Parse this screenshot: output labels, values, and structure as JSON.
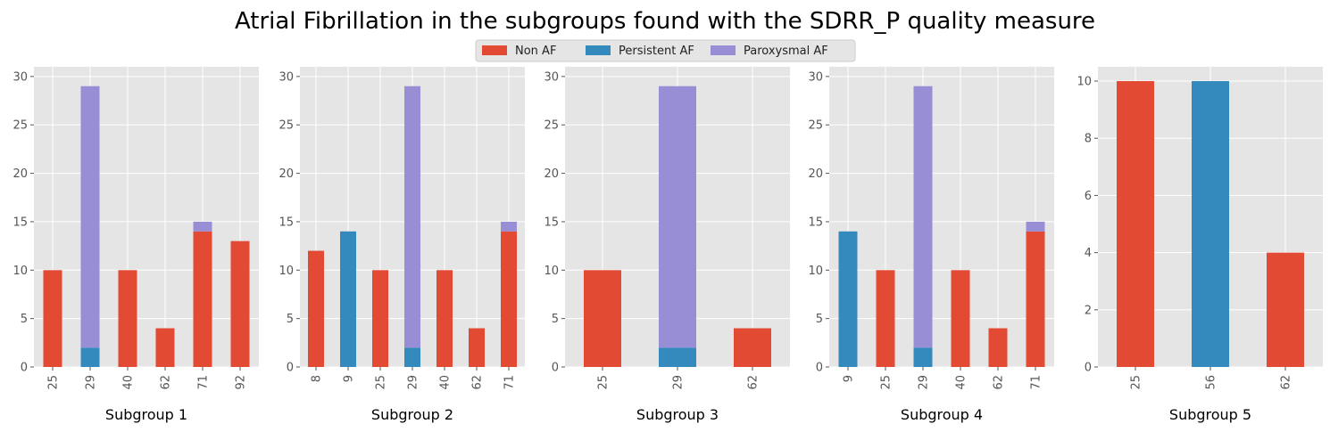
{
  "title": "Atrial Fibrillation in the subgroups found with the SDRR_P quality measure",
  "legend": [
    {
      "name": "Non AF",
      "color": "#e24a33"
    },
    {
      "name": "Persistent AF",
      "color": "#348abd"
    },
    {
      "name": "Paroxysmal AF",
      "color": "#988ed5"
    }
  ],
  "chart_data": [
    {
      "type": "bar",
      "stacked": true,
      "xlabel": "Subgroup 1",
      "categories": [
        "25",
        "29",
        "40",
        "62",
        "71",
        "92"
      ],
      "series": [
        {
          "name": "Non AF",
          "values": [
            10,
            0,
            10,
            4,
            14,
            13
          ]
        },
        {
          "name": "Persistent AF",
          "values": [
            0,
            2,
            0,
            0,
            0,
            0
          ]
        },
        {
          "name": "Paroxysmal AF",
          "values": [
            0,
            27,
            0,
            0,
            1,
            0
          ]
        }
      ],
      "ylim": [
        0,
        31
      ],
      "yticks": [
        0,
        5,
        10,
        15,
        20,
        25,
        30
      ]
    },
    {
      "type": "bar",
      "stacked": true,
      "xlabel": "Subgroup 2",
      "categories": [
        "8",
        "9",
        "25",
        "29",
        "40",
        "62",
        "71"
      ],
      "series": [
        {
          "name": "Non AF",
          "values": [
            12,
            0,
            10,
            0,
            10,
            4,
            14
          ]
        },
        {
          "name": "Persistent AF",
          "values": [
            0,
            14,
            0,
            2,
            0,
            0,
            0
          ]
        },
        {
          "name": "Paroxysmal AF",
          "values": [
            0,
            0,
            0,
            27,
            0,
            0,
            1
          ]
        }
      ],
      "ylim": [
        0,
        31
      ],
      "yticks": [
        0,
        5,
        10,
        15,
        20,
        25,
        30
      ]
    },
    {
      "type": "bar",
      "stacked": true,
      "xlabel": "Subgroup 3",
      "categories": [
        "25",
        "29",
        "62"
      ],
      "series": [
        {
          "name": "Non AF",
          "values": [
            10,
            0,
            4
          ]
        },
        {
          "name": "Persistent AF",
          "values": [
            0,
            2,
            0
          ]
        },
        {
          "name": "Paroxysmal AF",
          "values": [
            0,
            27,
            0
          ]
        }
      ],
      "ylim": [
        0,
        31
      ],
      "yticks": [
        0,
        5,
        10,
        15,
        20,
        25,
        30
      ]
    },
    {
      "type": "bar",
      "stacked": true,
      "xlabel": "Subgroup 4",
      "categories": [
        "9",
        "25",
        "29",
        "40",
        "62",
        "71"
      ],
      "series": [
        {
          "name": "Non AF",
          "values": [
            0,
            10,
            0,
            10,
            4,
            14
          ]
        },
        {
          "name": "Persistent AF",
          "values": [
            14,
            0,
            2,
            0,
            0,
            0
          ]
        },
        {
          "name": "Paroxysmal AF",
          "values": [
            0,
            0,
            27,
            0,
            0,
            1
          ]
        }
      ],
      "ylim": [
        0,
        31
      ],
      "yticks": [
        0,
        5,
        10,
        15,
        20,
        25,
        30
      ]
    },
    {
      "type": "bar",
      "stacked": true,
      "xlabel": "Subgroup 5",
      "categories": [
        "25",
        "56",
        "62"
      ],
      "series": [
        {
          "name": "Non AF",
          "values": [
            10,
            0,
            4
          ]
        },
        {
          "name": "Persistent AF",
          "values": [
            0,
            10,
            0
          ]
        },
        {
          "name": "Paroxysmal AF",
          "values": [
            0,
            0,
            0
          ]
        }
      ],
      "ylim": [
        0,
        10.5
      ],
      "yticks": [
        0,
        2,
        4,
        6,
        8,
        10
      ]
    }
  ]
}
